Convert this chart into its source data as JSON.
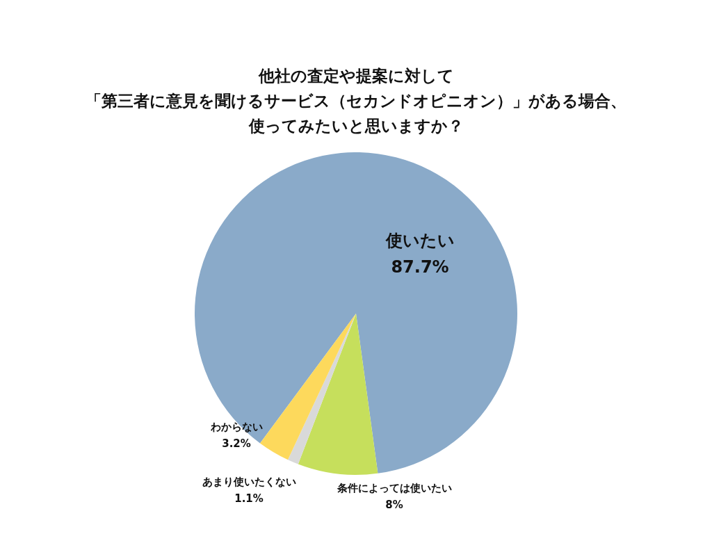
{
  "chart_data": {
    "type": "pie",
    "title": [
      "他社の査定や提案に対して",
      "「第三者に意見を聞けるサービス（セカンドオピニオン）」がある場合、",
      "使ってみたいと思いますか？"
    ],
    "categories": [
      "使いたい",
      "条件によっては使いたい",
      "あまり使いたくない",
      "わからない"
    ],
    "values": [
      87.7,
      8,
      1.1,
      3.2
    ],
    "value_labels": [
      "87.7%",
      "8%",
      "1.1%",
      "3.2%"
    ],
    "colors": [
      "#8aaac9",
      "#c6df5c",
      "#d9d9d9",
      "#fdd95c"
    ],
    "legend": false
  }
}
